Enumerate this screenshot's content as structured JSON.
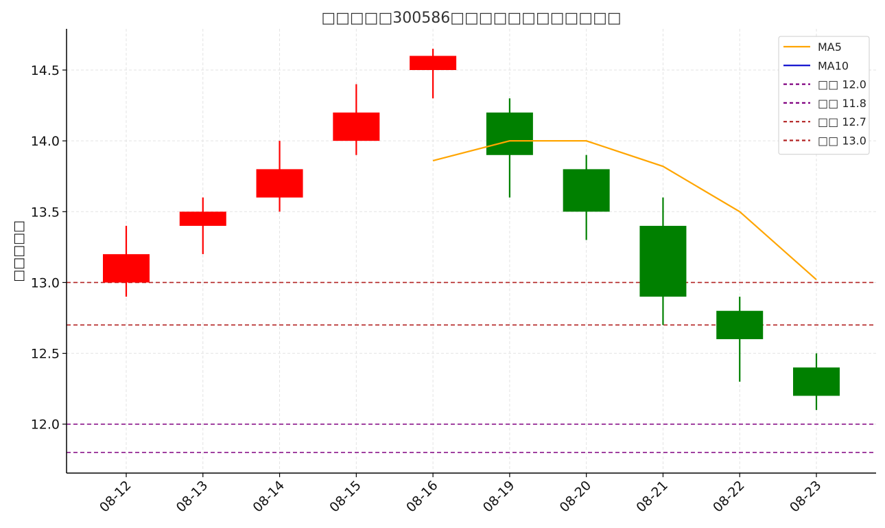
{
  "chart_data": {
    "type": "candlestick",
    "title": "□□□□□300586□□□□□□□□□□□□",
    "xlabel": "",
    "ylabel": "□□□□□",
    "categories": [
      "08-12",
      "08-13",
      "08-14",
      "08-15",
      "08-16",
      "08-19",
      "08-20",
      "08-21",
      "08-22",
      "08-23"
    ],
    "ohlc": [
      {
        "open": 13.0,
        "high": 13.4,
        "low": 12.9,
        "close": 13.2
      },
      {
        "open": 13.4,
        "high": 13.6,
        "low": 13.2,
        "close": 13.5
      },
      {
        "open": 13.6,
        "high": 14.0,
        "low": 13.5,
        "close": 13.8
      },
      {
        "open": 14.0,
        "high": 14.4,
        "low": 13.9,
        "close": 14.2
      },
      {
        "open": 14.5,
        "high": 14.65,
        "low": 14.3,
        "close": 14.6
      },
      {
        "open": 14.2,
        "high": 14.3,
        "low": 13.6,
        "close": 13.9
      },
      {
        "open": 13.8,
        "high": 13.9,
        "low": 13.3,
        "close": 13.5
      },
      {
        "open": 13.4,
        "high": 13.6,
        "low": 12.7,
        "close": 12.9
      },
      {
        "open": 12.8,
        "high": 12.9,
        "low": 12.3,
        "close": 12.6
      },
      {
        "open": 12.4,
        "high": 12.5,
        "low": 12.1,
        "close": 12.2
      }
    ],
    "series": [
      {
        "name": "MA5",
        "color": "#ffa500",
        "values": [
          null,
          null,
          null,
          null,
          13.86,
          14.0,
          14.0,
          13.82,
          13.5,
          13.02
        ]
      },
      {
        "name": "MA10",
        "color": "#0000cc",
        "values": [
          null,
          null,
          null,
          null,
          null,
          null,
          null,
          null,
          null,
          null
        ]
      }
    ],
    "hlines": [
      {
        "label": "□□ 12.0",
        "value": 12.0,
        "color": "#800080"
      },
      {
        "label": "□□ 11.8",
        "value": 11.8,
        "color": "#800080"
      },
      {
        "label": "□□ 12.7",
        "value": 12.7,
        "color": "#b22222"
      },
      {
        "label": "□□ 13.0",
        "value": 13.0,
        "color": "#b22222"
      }
    ],
    "colors": {
      "up": "#ff0000",
      "down": "#008000"
    },
    "yticks": [
      "12.0",
      "12.5",
      "13.0",
      "13.5",
      "14.0",
      "14.5"
    ],
    "ylim": [
      11.67,
      14.78
    ],
    "grid": true,
    "legend_position": "top-right"
  }
}
